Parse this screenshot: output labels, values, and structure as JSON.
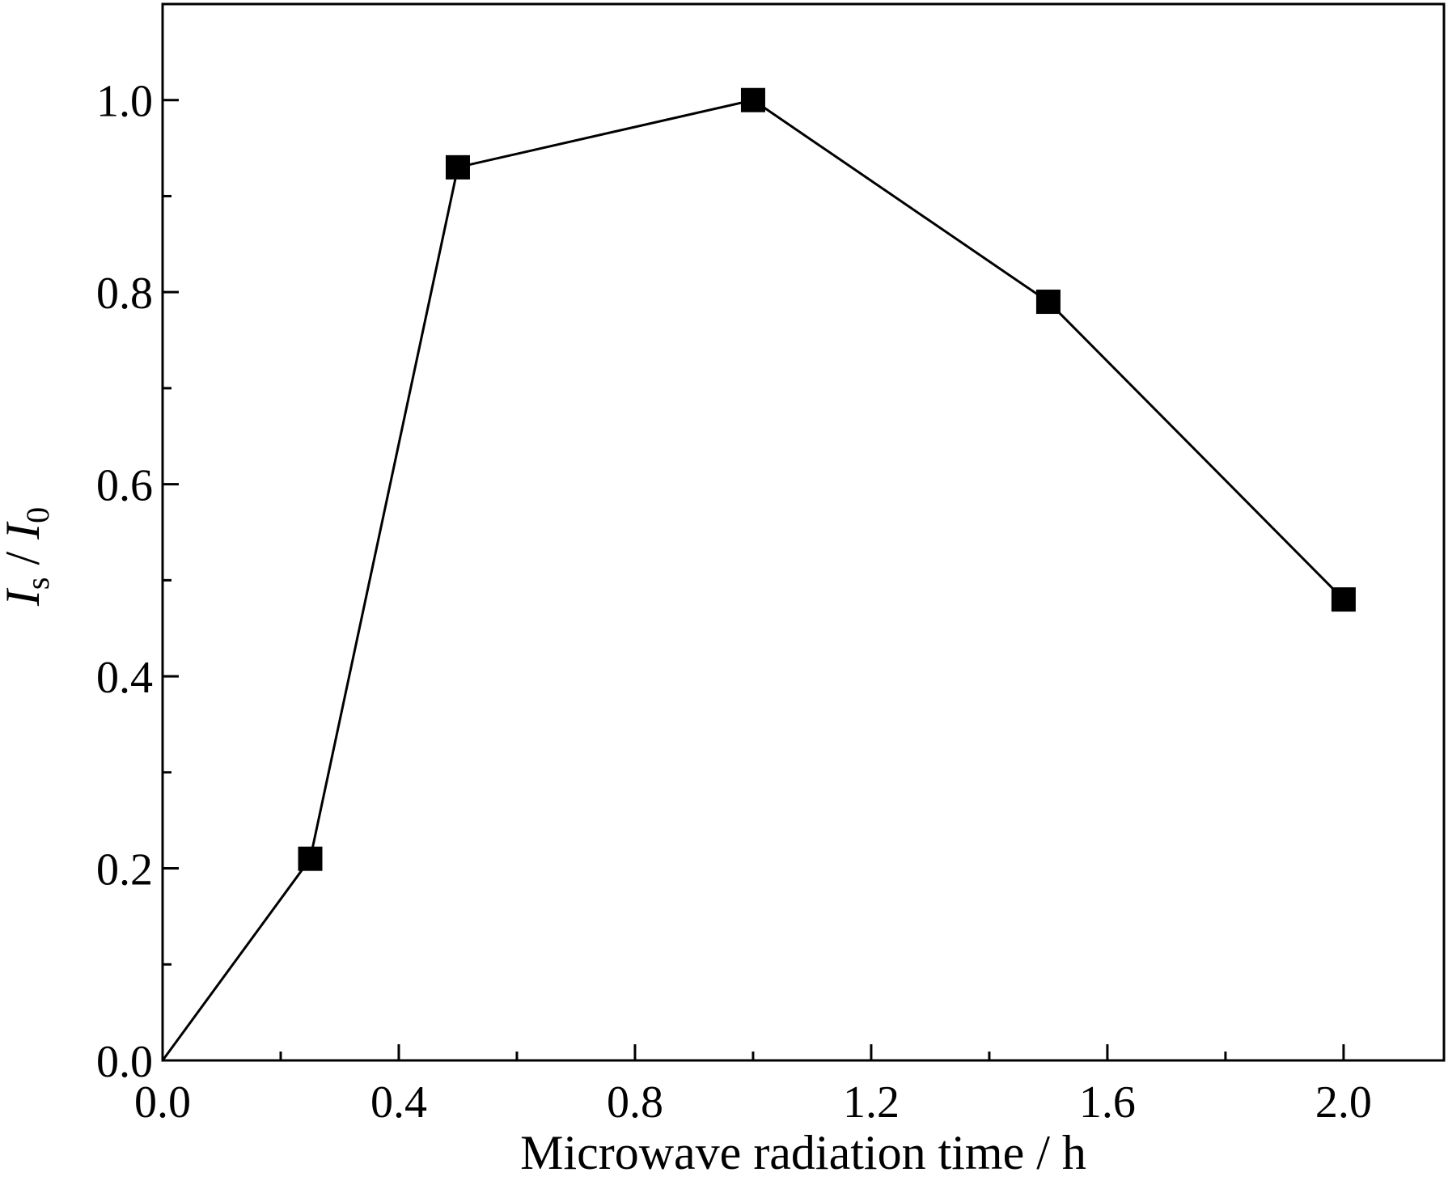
{
  "chart_data": {
    "type": "line",
    "x": [
      0,
      0.25,
      0.5,
      1.0,
      1.5,
      2.0
    ],
    "series": [
      {
        "values": [
          0.0,
          0.21,
          0.93,
          1.0,
          0.79,
          0.48
        ],
        "marker": "square",
        "marker_at_first_point": false,
        "color": "#000000"
      }
    ],
    "xlabel": "Microwave radiation time / h",
    "ylabel": {
      "main1": "I",
      "sub1": "s",
      "sep": " / ",
      "main2": "I",
      "sub2": "0"
    },
    "xlim": [
      0.0,
      2.17
    ],
    "ylim": [
      0.0,
      1.1
    ],
    "xticks": [
      {
        "value": 0.0,
        "label": "0.0"
      },
      {
        "value": 0.4,
        "label": "0.4"
      },
      {
        "value": 0.8,
        "label": "0.8"
      },
      {
        "value": 1.2,
        "label": "1.2"
      },
      {
        "value": 1.6,
        "label": "1.6"
      },
      {
        "value": 2.0,
        "label": "2.0"
      }
    ],
    "xminor_ticks": [
      0.2,
      0.6,
      1.0,
      1.4,
      1.8
    ],
    "yticks": [
      {
        "value": 0.0,
        "label": "0.0"
      },
      {
        "value": 0.2,
        "label": "0.2"
      },
      {
        "value": 0.4,
        "label": "0.4"
      },
      {
        "value": 0.6,
        "label": "0.6"
      },
      {
        "value": 0.8,
        "label": "0.8"
      },
      {
        "value": 1.0,
        "label": "1.0"
      }
    ],
    "yminor_ticks": [
      0.1,
      0.3,
      0.5,
      0.7,
      0.9
    ],
    "grid": false,
    "legend": "none"
  }
}
